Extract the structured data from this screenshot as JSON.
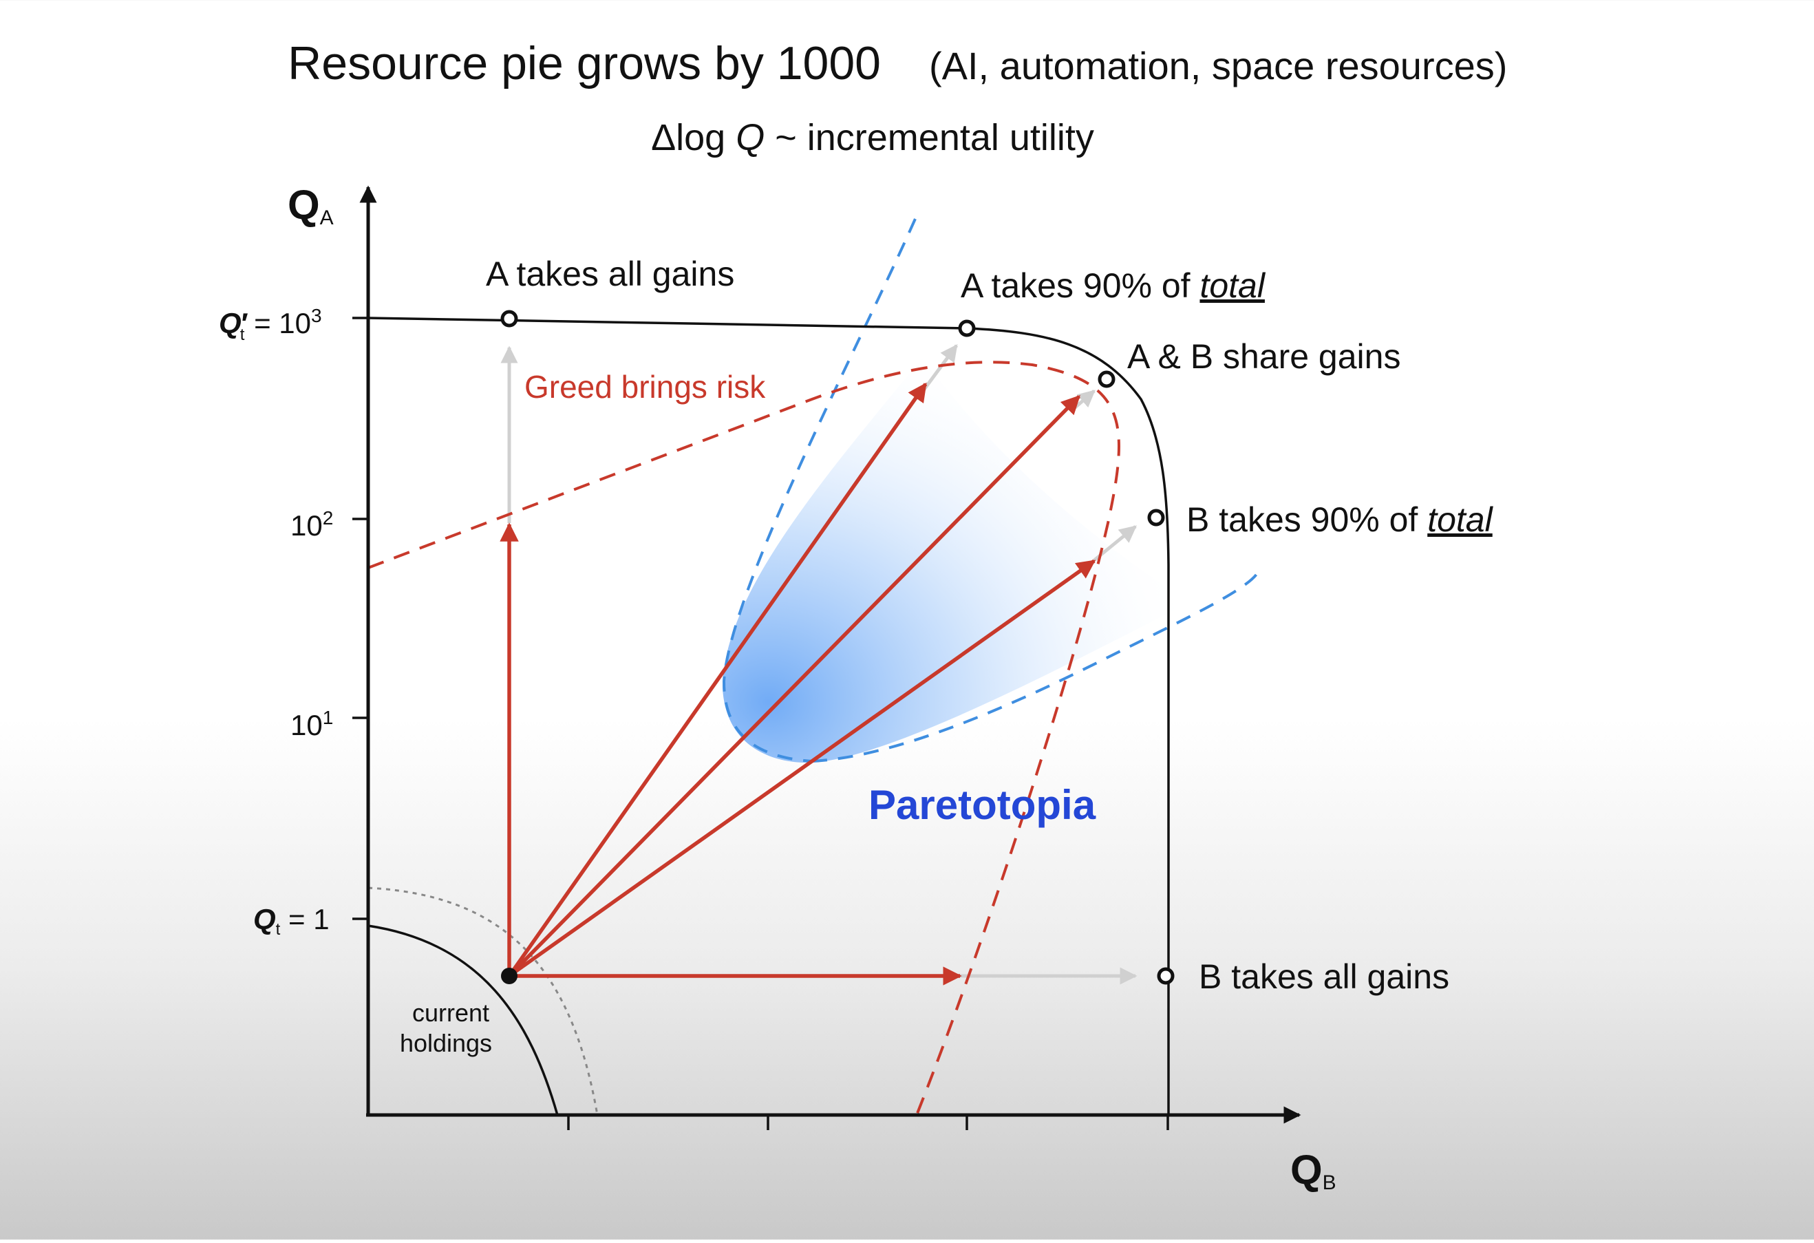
{
  "title": {
    "main": "Resource pie grows by 1000",
    "parenthetical": "(AI, automation, space resources)",
    "subtitle_prefix": "Δlog ",
    "subtitle_q": "Q",
    "subtitle_suffix": " ~ incremental utility"
  },
  "axes": {
    "y_letter": "Q",
    "y_sub": "A",
    "x_letter": "Q",
    "x_sub": "B",
    "ticks_y": {
      "top_prefix": "Q",
      "top_prime": "′",
      "top_sub": "t",
      "top_eq": " = 10",
      "top_exp": "3",
      "e2_base": "10",
      "e2_exp": "2",
      "e1_base": "10",
      "e1_exp": "1",
      "bottom_prefix": "Q",
      "bottom_sub": "t",
      "bottom_eq": " = 1"
    },
    "scale": "log"
  },
  "labels": {
    "a_takes_all": "A takes all gains",
    "a_takes_90_prefix": "A takes 90% of ",
    "a_takes_90_em": "total",
    "share": "A & B share gains",
    "b_takes_90_prefix": "B takes 90% of ",
    "b_takes_90_em": "total",
    "b_takes_all": "B takes all gains",
    "greed": "Greed brings risk",
    "paretotopia": "Paretotopia",
    "current_line1": "current",
    "current_line2": "holdings"
  },
  "colors": {
    "red": "#c8392b",
    "blue_dash": "#3f8ee0",
    "paretotopia_text": "#2447d6",
    "gray_arrow": "#cfcfcf",
    "black": "#111111",
    "region_blue": "#7db3f5"
  }
}
